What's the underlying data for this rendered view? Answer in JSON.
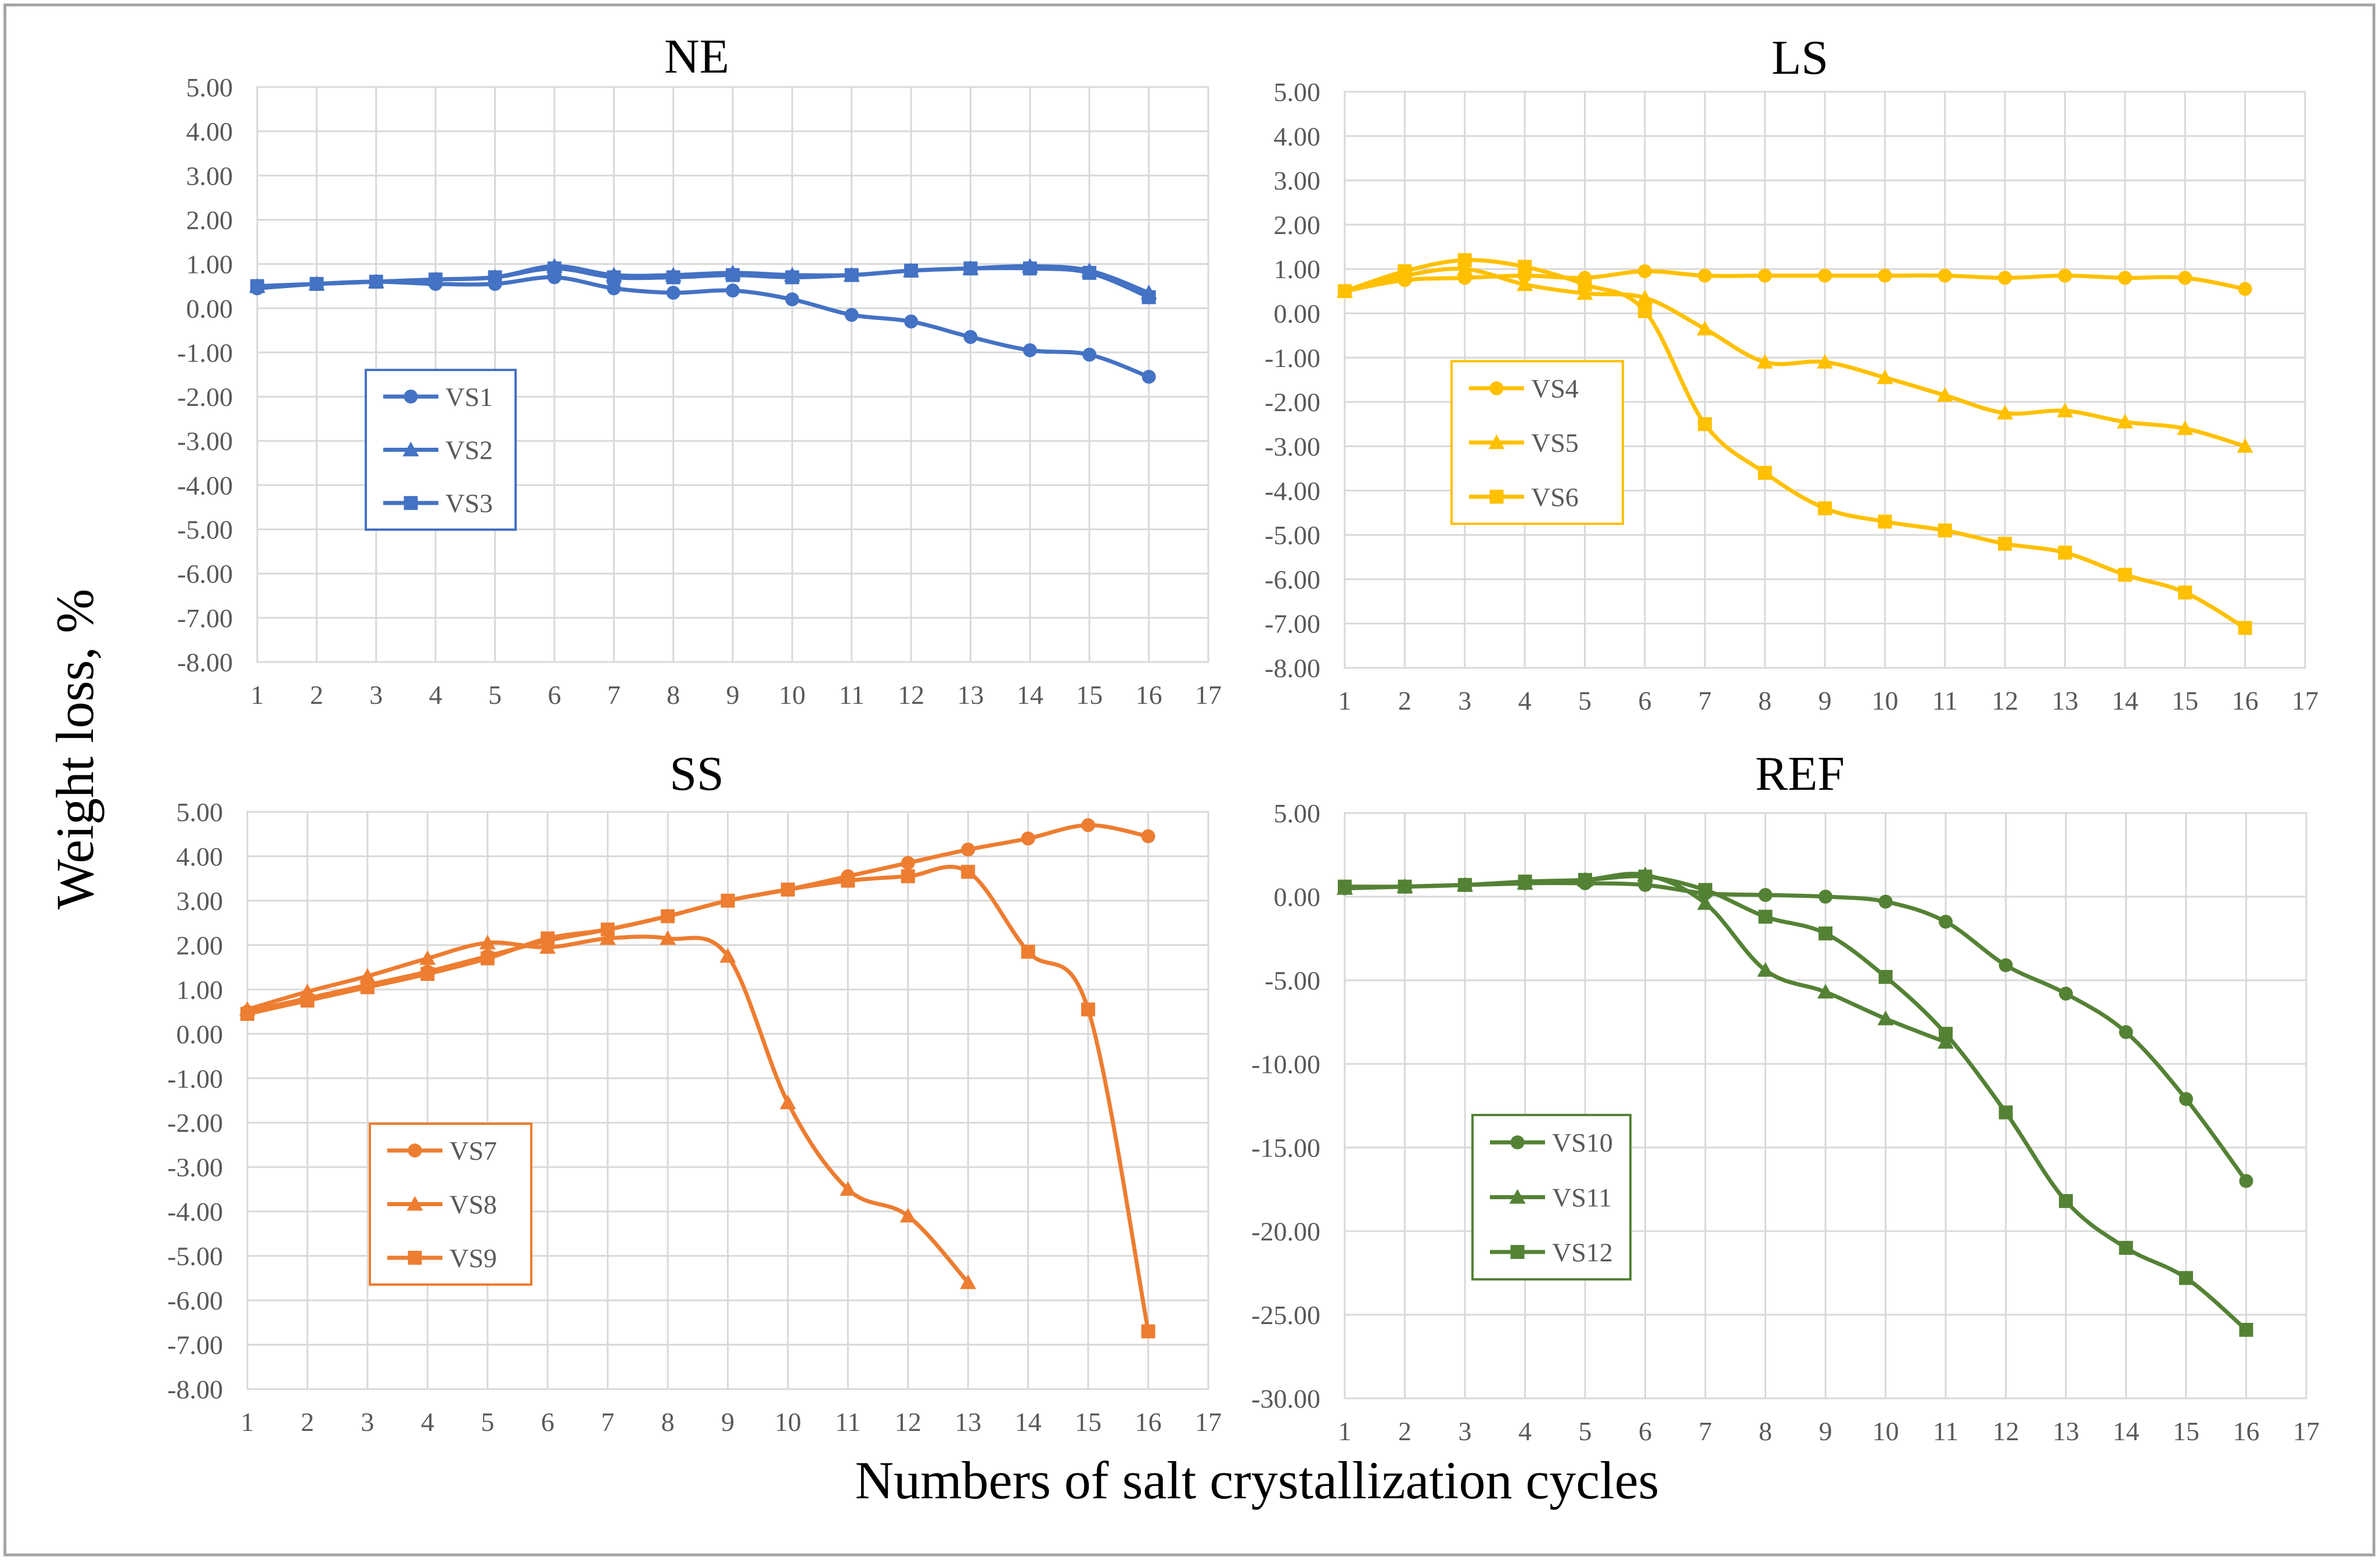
{
  "figure": {
    "ylabel": "Weight loss, %",
    "xlabel": "Numbers of salt crystallization cycles"
  },
  "chart_data": [
    {
      "type": "line",
      "title": "NE",
      "color": "#4472c4",
      "xlim": [
        1,
        17
      ],
      "ylim": [
        -8,
        5
      ],
      "ytick_step": 1,
      "ytick_labels": [
        "5.00",
        "4.00",
        "3.00",
        "2.00",
        "1.00",
        "0.00",
        "-1.00",
        "-2.00",
        "-3.00",
        "-4.00",
        "-5.00",
        "-6.00",
        "-7.00",
        "-8.00"
      ],
      "xtick_labels": [
        "1",
        "2",
        "3",
        "4",
        "5",
        "6",
        "7",
        "8",
        "9",
        "10",
        "11",
        "12",
        "13",
        "14",
        "15",
        "16",
        "17"
      ],
      "legend_position": "middle-left",
      "series": [
        {
          "name": "VS1",
          "marker": "circle",
          "x": [
            1,
            2,
            3,
            4,
            5,
            6,
            7,
            8,
            9,
            10,
            11,
            12,
            13,
            14,
            15,
            16
          ],
          "values": [
            0.45,
            0.55,
            0.6,
            0.55,
            0.55,
            0.7,
            0.45,
            0.35,
            0.4,
            0.2,
            -0.15,
            -0.3,
            -0.65,
            -0.95,
            -1.05,
            -1.55
          ]
        },
        {
          "name": "VS2",
          "marker": "triangle",
          "x": [
            1,
            2,
            3,
            4,
            5,
            6,
            7,
            8,
            9,
            10,
            11,
            12,
            13,
            14,
            15,
            16
          ],
          "values": [
            0.5,
            0.55,
            0.6,
            0.65,
            0.7,
            0.95,
            0.75,
            0.75,
            0.8,
            0.75,
            0.75,
            0.85,
            0.9,
            0.95,
            0.85,
            0.35
          ]
        },
        {
          "name": "VS3",
          "marker": "square",
          "x": [
            1,
            2,
            3,
            4,
            5,
            6,
            7,
            8,
            9,
            10,
            11,
            12,
            13,
            14,
            15,
            16
          ],
          "values": [
            0.5,
            0.55,
            0.6,
            0.65,
            0.7,
            0.9,
            0.7,
            0.7,
            0.75,
            0.7,
            0.75,
            0.85,
            0.9,
            0.9,
            0.8,
            0.25
          ]
        }
      ]
    },
    {
      "type": "line",
      "title": "LS",
      "color": "#ffc000",
      "xlim": [
        1,
        17
      ],
      "ylim": [
        -8,
        5
      ],
      "ytick_step": 1,
      "ytick_labels": [
        "5.00",
        "4.00",
        "3.00",
        "2.00",
        "1.00",
        "0.00",
        "-1.00",
        "-2.00",
        "-3.00",
        "-4.00",
        "-5.00",
        "-6.00",
        "-7.00",
        "-8.00"
      ],
      "xtick_labels": [
        "1",
        "2",
        "3",
        "4",
        "5",
        "6",
        "7",
        "8",
        "9",
        "10",
        "11",
        "12",
        "13",
        "14",
        "15",
        "16",
        "17"
      ],
      "legend_position": "middle-left",
      "series": [
        {
          "name": "VS4",
          "marker": "circle",
          "x": [
            1,
            2,
            3,
            4,
            5,
            6,
            7,
            8,
            9,
            10,
            11,
            12,
            13,
            14,
            15,
            16
          ],
          "values": [
            0.5,
            0.75,
            0.8,
            0.85,
            0.8,
            0.95,
            0.85,
            0.85,
            0.85,
            0.85,
            0.85,
            0.8,
            0.85,
            0.8,
            0.8,
            0.55
          ]
        },
        {
          "name": "VS5",
          "marker": "triangle",
          "x": [
            1,
            2,
            3,
            4,
            5,
            6,
            7,
            8,
            9,
            10,
            11,
            12,
            13,
            14,
            15,
            16
          ],
          "values": [
            0.5,
            0.85,
            1.0,
            0.65,
            0.45,
            0.35,
            -0.35,
            -1.1,
            -1.1,
            -1.45,
            -1.85,
            -2.25,
            -2.2,
            -2.45,
            -2.6,
            -3.0
          ]
        },
        {
          "name": "VS6",
          "marker": "square",
          "x": [
            1,
            2,
            3,
            4,
            5,
            6,
            7,
            8,
            9,
            10,
            11,
            12,
            13,
            14,
            15,
            16
          ],
          "values": [
            0.5,
            0.95,
            1.2,
            1.05,
            0.65,
            0.05,
            -2.5,
            -3.6,
            -4.4,
            -4.7,
            -4.9,
            -5.2,
            -5.4,
            -5.9,
            -6.3,
            -7.1
          ]
        }
      ]
    },
    {
      "type": "line",
      "title": "SS",
      "color": "#ed7d31",
      "xlim": [
        1,
        17
      ],
      "ylim": [
        -8,
        5
      ],
      "ytick_step": 1,
      "ytick_labels": [
        "5.00",
        "4.00",
        "3.00",
        "2.00",
        "1.00",
        "0.00",
        "-1.00",
        "-2.00",
        "-3.00",
        "-4.00",
        "-5.00",
        "-6.00",
        "-7.00",
        "-8.00"
      ],
      "xtick_labels": [
        "1",
        "2",
        "3",
        "4",
        "5",
        "6",
        "7",
        "8",
        "9",
        "10",
        "11",
        "12",
        "13",
        "14",
        "15",
        "16",
        "17"
      ],
      "legend_position": "bottom-left",
      "series": [
        {
          "name": "VS7",
          "marker": "circle",
          "x": [
            1,
            2,
            3,
            4,
            5,
            6,
            7,
            8,
            9,
            10,
            11,
            12,
            13,
            14,
            15,
            16
          ],
          "values": [
            0.5,
            0.8,
            1.1,
            1.4,
            1.75,
            2.1,
            2.35,
            2.65,
            3.0,
            3.25,
            3.55,
            3.85,
            4.15,
            4.4,
            4.7,
            4.45
          ]
        },
        {
          "name": "VS8",
          "marker": "triangle",
          "x": [
            1,
            2,
            3,
            4,
            5,
            6,
            7,
            8,
            9,
            10,
            11,
            12,
            13
          ],
          "values": [
            0.55,
            0.95,
            1.3,
            1.7,
            2.05,
            1.95,
            2.15,
            2.15,
            1.75,
            -1.55,
            -3.5,
            -4.1,
            -5.6
          ]
        },
        {
          "name": "VS9",
          "marker": "square",
          "x": [
            1,
            2,
            3,
            4,
            5,
            6,
            7,
            8,
            9,
            10,
            11,
            12,
            13,
            14,
            15,
            16
          ],
          "values": [
            0.45,
            0.75,
            1.05,
            1.35,
            1.7,
            2.15,
            2.35,
            2.65,
            3.0,
            3.25,
            3.45,
            3.55,
            3.65,
            1.85,
            0.55,
            -6.7
          ]
        }
      ]
    },
    {
      "type": "line",
      "title": "REF",
      "color": "#548235",
      "xlim": [
        1,
        17
      ],
      "ylim": [
        -30,
        5
      ],
      "ytick_step": 5,
      "ytick_labels": [
        "5.00",
        "0.00",
        "-5.00",
        "-10.00",
        "-15.00",
        "-20.00",
        "-25.00",
        "-30.00"
      ],
      "xtick_labels": [
        "1",
        "2",
        "3",
        "4",
        "5",
        "6",
        "7",
        "8",
        "9",
        "10",
        "11",
        "12",
        "13",
        "14",
        "15",
        "16",
        "17"
      ],
      "legend_position": "bottom-left",
      "series": [
        {
          "name": "VS10",
          "marker": "circle",
          "x": [
            1,
            2,
            3,
            4,
            5,
            6,
            7,
            8,
            9,
            10,
            11,
            12,
            13,
            14,
            15,
            16
          ],
          "values": [
            0.5,
            0.6,
            0.7,
            0.8,
            0.8,
            0.7,
            0.2,
            0.1,
            0.0,
            -0.3,
            -1.5,
            -4.1,
            -5.8,
            -8.1,
            -12.1,
            -17.0
          ]
        },
        {
          "name": "VS11",
          "marker": "triangle",
          "x": [
            1,
            2,
            3,
            4,
            5,
            6,
            7,
            8,
            9,
            10,
            11
          ],
          "values": [
            0.5,
            0.6,
            0.7,
            0.8,
            1.0,
            1.3,
            -0.4,
            -4.4,
            -5.7,
            -7.3,
            -8.7
          ]
        },
        {
          "name": "VS12",
          "marker": "square",
          "x": [
            1,
            2,
            3,
            4,
            5,
            6,
            7,
            8,
            9,
            10,
            11,
            12,
            13,
            14,
            15,
            16
          ],
          "values": [
            0.6,
            0.6,
            0.7,
            0.9,
            1.0,
            1.2,
            0.4,
            -1.2,
            -2.2,
            -4.8,
            -8.2,
            -12.9,
            -18.2,
            -21.0,
            -22.8,
            -25.9
          ]
        }
      ]
    }
  ]
}
